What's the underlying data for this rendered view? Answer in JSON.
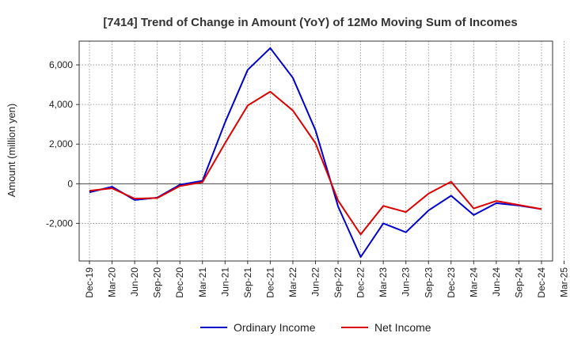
{
  "chart_data": {
    "type": "line",
    "title": "[7414]  Trend of Change in Amount (YoY) of 12Mo Moving Sum of Incomes",
    "xlabel": "",
    "ylabel": "Amount (million yen)",
    "ylim": [
      -3900,
      7200
    ],
    "yticks": [
      -2000,
      0,
      2000,
      4000,
      6000
    ],
    "ytick_labels": [
      "-2,000",
      "0",
      "2,000",
      "4,000",
      "6,000"
    ],
    "x": [
      "Dec-19",
      "Mar-20",
      "Jun-20",
      "Sep-20",
      "Dec-20",
      "Mar-21",
      "Jun-21",
      "Sep-21",
      "Dec-21",
      "Mar-22",
      "Jun-22",
      "Sep-22",
      "Dec-22",
      "Mar-23",
      "Jun-23",
      "Sep-23",
      "Dec-23",
      "Mar-24",
      "Jun-24",
      "Sep-24",
      "Dec-24",
      "Mar-25"
    ],
    "grid": true,
    "legend_position": "bottom",
    "series": [
      {
        "name": "Ordinary Income",
        "color": "#0000cc",
        "values": [
          -430,
          -150,
          -820,
          -700,
          -50,
          150,
          3100,
          5750,
          6850,
          5350,
          2700,
          -1150,
          -3700,
          -2000,
          -2450,
          -1350,
          -600,
          -1580,
          -980,
          -1100,
          -1280,
          null
        ]
      },
      {
        "name": "Net Income",
        "color": "#dd0000",
        "values": [
          -350,
          -230,
          -750,
          -720,
          -120,
          80,
          2050,
          3950,
          4650,
          3700,
          2050,
          -850,
          -2560,
          -1120,
          -1430,
          -500,
          100,
          -1250,
          -870,
          -1070,
          -1280,
          null
        ]
      }
    ]
  }
}
